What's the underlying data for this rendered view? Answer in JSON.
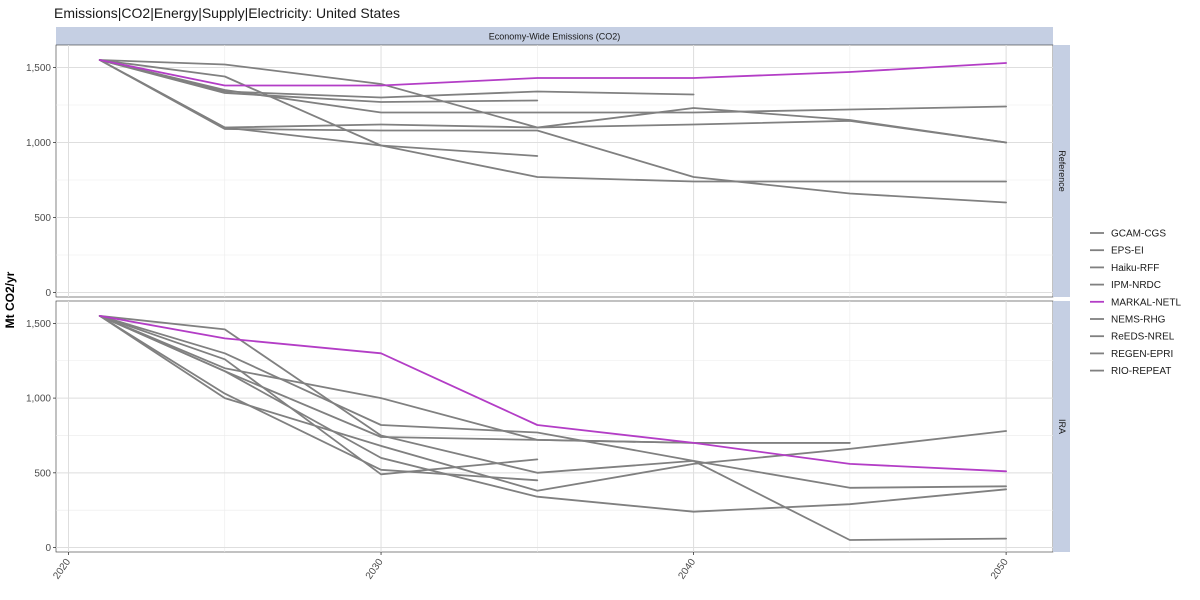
{
  "chart_data": {
    "type": "line",
    "title": "Emissions|CO2|Energy|Supply|Electricity: United States",
    "ylabel": "Mt CO2/yr",
    "xlabel": "",
    "column_strip": "Economy-Wide Emissions (CO2)",
    "x_ticks": [
      2020,
      2030,
      2040,
      2050
    ],
    "y_ticks": [
      0,
      500,
      1000,
      1500
    ],
    "y_tick_labels": [
      "0",
      "500",
      "1,000",
      "1,500"
    ],
    "xlim": [
      2019.6,
      2051.5
    ],
    "ylim": [
      -30,
      1650
    ],
    "grid": true,
    "legend_position": "right",
    "legend": [
      {
        "name": "GCAM-CGS",
        "color": "#808080"
      },
      {
        "name": "EPS-EI",
        "color": "#808080"
      },
      {
        "name": "Haiku-RFF",
        "color": "#808080"
      },
      {
        "name": "IPM-NRDC",
        "color": "#808080"
      },
      {
        "name": "MARKAL-NETL",
        "color": "#b33dc6"
      },
      {
        "name": "NEMS-RHG",
        "color": "#808080"
      },
      {
        "name": "ReEDS-NREL",
        "color": "#808080"
      },
      {
        "name": "REGEN-EPRI",
        "color": "#808080"
      },
      {
        "name": "RIO-REPEAT",
        "color": "#808080"
      }
    ],
    "panels": [
      {
        "label": "Reference",
        "series": [
          {
            "model": "GCAM-CGS",
            "color": "#808080",
            "points": [
              [
                2021,
                1550
              ],
              [
                2025,
                1100
              ],
              [
                2030,
                1120
              ],
              [
                2035,
                1100
              ],
              [
                2040,
                1120
              ],
              [
                2045,
                1145
              ],
              [
                2050,
                1000
              ]
            ]
          },
          {
            "model": "EPS-EI",
            "color": "#808080",
            "points": [
              [
                2021,
                1550
              ],
              [
                2025,
                1350
              ],
              [
                2030,
                1200
              ],
              [
                2035,
                1200
              ],
              [
                2040,
                1200
              ],
              [
                2045,
                1220
              ],
              [
                2050,
                1240
              ]
            ]
          },
          {
            "model": "Haiku-RFF",
            "color": "#808080",
            "points": [
              [
                2021,
                1550
              ],
              [
                2025,
                1340
              ],
              [
                2030,
                1300
              ],
              [
                2035,
                1340
              ],
              [
                2040,
                1320
              ]
            ]
          },
          {
            "model": "IPM-NRDC",
            "color": "#808080",
            "points": [
              [
                2021,
                1550
              ],
              [
                2025,
                1330
              ],
              [
                2030,
                1270
              ],
              [
                2035,
                1280
              ]
            ]
          },
          {
            "model": "MARKAL-NETL",
            "color": "#b33dc6",
            "points": [
              [
                2021,
                1550
              ],
              [
                2025,
                1380
              ],
              [
                2030,
                1380
              ],
              [
                2035,
                1430
              ],
              [
                2040,
                1430
              ],
              [
                2045,
                1470
              ],
              [
                2050,
                1530
              ]
            ]
          },
          {
            "model": "NEMS-RHG",
            "color": "#808080",
            "points": [
              [
                2021,
                1550
              ],
              [
                2025,
                1520
              ],
              [
                2030,
                1390
              ],
              [
                2035,
                1100
              ],
              [
                2040,
                1230
              ],
              [
                2045,
                1150
              ],
              [
                2050,
                1000
              ]
            ]
          },
          {
            "model": "ReEDS-NREL",
            "color": "#808080",
            "points": [
              [
                2021,
                1550
              ],
              [
                2025,
                1440
              ],
              [
                2030,
                980
              ],
              [
                2035,
                770
              ],
              [
                2040,
                740
              ],
              [
                2045,
                740
              ],
              [
                2050,
                740
              ]
            ]
          },
          {
            "model": "REGEN-EPRI",
            "color": "#808080",
            "points": [
              [
                2021,
                1550
              ],
              [
                2025,
                1090
              ],
              [
                2030,
                1080
              ],
              [
                2035,
                1080
              ],
              [
                2040,
                770
              ],
              [
                2045,
                660
              ],
              [
                2050,
                600
              ]
            ]
          },
          {
            "model": "RIO-REPEAT",
            "color": "#808080",
            "points": [
              [
                2021,
                1550
              ],
              [
                2025,
                1100
              ],
              [
                2030,
                980
              ],
              [
                2035,
                910
              ]
            ]
          }
        ]
      },
      {
        "label": "IRA",
        "series": [
          {
            "model": "GCAM-CGS",
            "color": "#808080",
            "points": [
              [
                2021,
                1550
              ],
              [
                2025,
                1200
              ],
              [
                2030,
                1000
              ],
              [
                2035,
                720
              ],
              [
                2040,
                700
              ],
              [
                2045,
                700
              ]
            ]
          },
          {
            "model": "EPS-EI",
            "color": "#808080",
            "points": [
              [
                2021,
                1550
              ],
              [
                2025,
                1300
              ],
              [
                2030,
                820
              ],
              [
                2035,
                770
              ],
              [
                2040,
                580
              ],
              [
                2045,
                400
              ],
              [
                2050,
                410
              ]
            ]
          },
          {
            "model": "Haiku-RFF",
            "color": "#808080",
            "points": [
              [
                2021,
                1550
              ],
              [
                2025,
                1180
              ],
              [
                2030,
                740
              ],
              [
                2035,
                720
              ],
              [
                2040,
                700
              ],
              [
                2045,
                700
              ]
            ]
          },
          {
            "model": "IPM-NRDC",
            "color": "#808080",
            "points": [
              [
                2021,
                1550
              ],
              [
                2025,
                1030
              ],
              [
                2030,
                520
              ],
              [
                2035,
                450
              ]
            ]
          },
          {
            "model": "MARKAL-NETL",
            "color": "#b33dc6",
            "points": [
              [
                2021,
                1550
              ],
              [
                2025,
                1400
              ],
              [
                2030,
                1300
              ],
              [
                2035,
                820
              ],
              [
                2040,
                700
              ],
              [
                2045,
                560
              ],
              [
                2050,
                510
              ]
            ]
          },
          {
            "model": "NEMS-RHG",
            "color": "#808080",
            "points": [
              [
                2021,
                1550
              ],
              [
                2025,
                1460
              ],
              [
                2030,
                750
              ],
              [
                2035,
                500
              ],
              [
                2040,
                580
              ],
              [
                2045,
                50
              ],
              [
                2050,
                60
              ]
            ]
          },
          {
            "model": "ReEDS-NREL",
            "color": "#808080",
            "points": [
              [
                2021,
                1550
              ],
              [
                2025,
                1180
              ],
              [
                2030,
                600
              ],
              [
                2035,
                340
              ],
              [
                2040,
                240
              ],
              [
                2045,
                290
              ],
              [
                2050,
                390
              ]
            ]
          },
          {
            "model": "REGEN-EPRI",
            "color": "#808080",
            "points": [
              [
                2021,
                1550
              ],
              [
                2025,
                1000
              ],
              [
                2030,
                680
              ],
              [
                2035,
                380
              ],
              [
                2040,
                560
              ],
              [
                2045,
                660
              ],
              [
                2050,
                780
              ]
            ]
          },
          {
            "model": "RIO-REPEAT",
            "color": "#808080",
            "points": [
              [
                2021,
                1550
              ],
              [
                2025,
                1260
              ],
              [
                2030,
                490
              ],
              [
                2035,
                590
              ]
            ]
          }
        ]
      }
    ]
  }
}
